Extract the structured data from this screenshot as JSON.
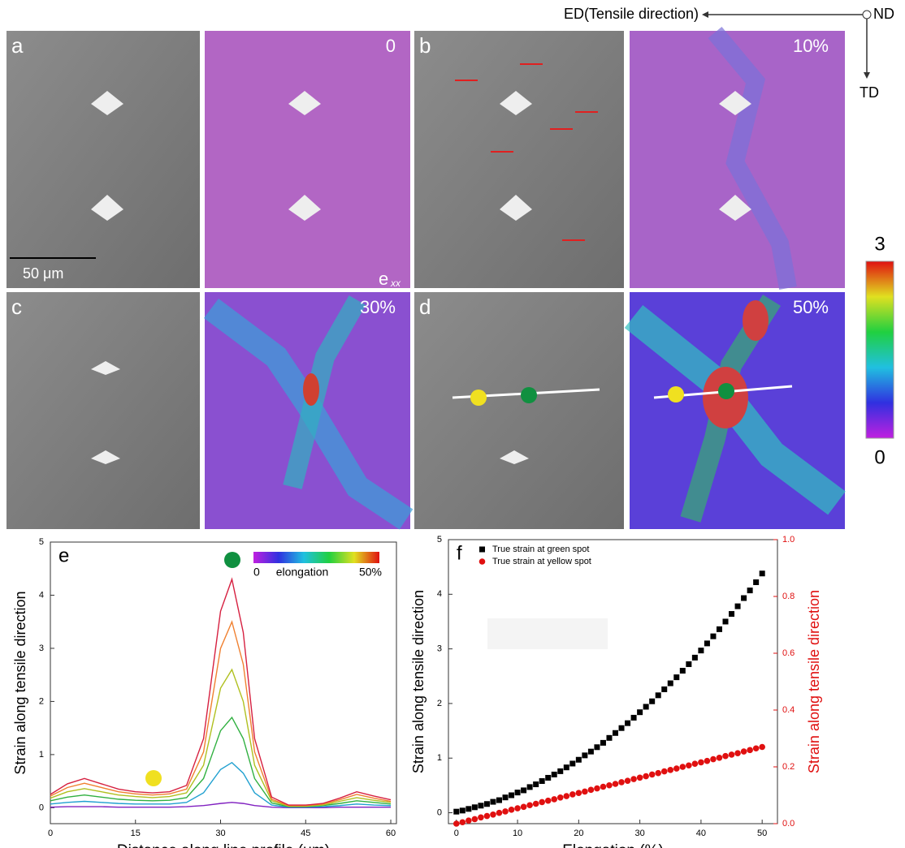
{
  "figure": {
    "header": {
      "ed": "ED(Tensile direction)",
      "nd": "ND",
      "td": "TD"
    },
    "panels": [
      {
        "label": "a",
        "strain": "0"
      },
      {
        "label": "b",
        "strain": "10%"
      },
      {
        "label": "c",
        "strain": "30%"
      },
      {
        "label": "d",
        "strain": "50%"
      }
    ],
    "scale_bar": "50 μm",
    "map_symbol": {
      "main": "e",
      "sub": "xx"
    },
    "colorbar": {
      "max": "3",
      "min": "0"
    }
  },
  "chart_data": [
    {
      "type": "line",
      "panel": "e",
      "xlabel": "Distance along line profile (μm)",
      "ylabel": "Strain along tensile direction",
      "legend_labels": [
        "0",
        "elongation",
        "50%"
      ],
      "xlim": [
        0,
        61
      ],
      "ylim": [
        -0.3,
        5
      ],
      "xticks": [
        0,
        15,
        30,
        45,
        60
      ],
      "yticks": [
        0,
        1,
        2,
        3,
        4,
        5
      ],
      "x": [
        0,
        3,
        6,
        9,
        12,
        15,
        18,
        21,
        24,
        27,
        30,
        32,
        34,
        36,
        39,
        42,
        45,
        48,
        51,
        54,
        57,
        60
      ],
      "series": [
        {
          "color": "#8020c0",
          "values": [
            0.01,
            0.02,
            0.02,
            0.02,
            0.01,
            0.01,
            0.01,
            0.01,
            0.02,
            0.04,
            0.08,
            0.1,
            0.08,
            0.04,
            0.01,
            0,
            0,
            0,
            0.01,
            0.01,
            0.01,
            0.01
          ]
        },
        {
          "color": "#20a0d0",
          "values": [
            0.07,
            0.1,
            0.12,
            0.1,
            0.08,
            0.07,
            0.07,
            0.07,
            0.1,
            0.28,
            0.72,
            0.85,
            0.65,
            0.28,
            0.05,
            0.01,
            0.01,
            0.02,
            0.04,
            0.07,
            0.05,
            0.04
          ]
        },
        {
          "color": "#30b040",
          "values": [
            0.13,
            0.2,
            0.24,
            0.2,
            0.16,
            0.14,
            0.13,
            0.14,
            0.19,
            0.55,
            1.45,
            1.7,
            1.3,
            0.55,
            0.09,
            0.02,
            0.02,
            0.04,
            0.08,
            0.13,
            0.1,
            0.07
          ]
        },
        {
          "color": "#b0c020",
          "values": [
            0.18,
            0.3,
            0.36,
            0.3,
            0.24,
            0.21,
            0.19,
            0.21,
            0.28,
            0.8,
            2.25,
            2.6,
            2.0,
            0.8,
            0.13,
            0.03,
            0.03,
            0.05,
            0.12,
            0.19,
            0.14,
            0.1
          ]
        },
        {
          "color": "#f08030",
          "values": [
            0.22,
            0.38,
            0.46,
            0.38,
            0.3,
            0.26,
            0.24,
            0.26,
            0.35,
            1.05,
            3.0,
            3.5,
            2.7,
            1.05,
            0.16,
            0.04,
            0.04,
            0.07,
            0.15,
            0.25,
            0.18,
            0.12
          ]
        },
        {
          "color": "#d62040",
          "values": [
            0.25,
            0.45,
            0.55,
            0.45,
            0.35,
            0.3,
            0.28,
            0.3,
            0.42,
            1.3,
            3.7,
            4.3,
            3.3,
            1.3,
            0.2,
            0.05,
            0.05,
            0.08,
            0.18,
            0.3,
            0.22,
            0.15
          ]
        }
      ]
    },
    {
      "type": "scatter",
      "panel": "f",
      "xlabel": "Elongation (%)",
      "ylabel": "Strain along tensile direction",
      "y2label": "Strain along tensile direction",
      "xlim": [
        -1.3,
        52.5
      ],
      "ylim": [
        -0.2,
        5
      ],
      "y2lim": [
        0,
        1
      ],
      "xticks": [
        0,
        10,
        20,
        30,
        40,
        50
      ],
      "yticks": [
        0,
        1,
        2,
        3,
        4,
        5
      ],
      "y2ticks": [
        {
          "value": 0,
          "label": "0.0"
        },
        0.2,
        0.4,
        0.6,
        0.8,
        {
          "value": 1,
          "label": "1.0"
        }
      ],
      "x": [
        0,
        1,
        2,
        3,
        4,
        5,
        6,
        7,
        8,
        9,
        10,
        11,
        12,
        13,
        14,
        15,
        16,
        17,
        18,
        19,
        20,
        21,
        22,
        23,
        24,
        25,
        26,
        27,
        28,
        29,
        30,
        31,
        32,
        33,
        34,
        35,
        36,
        37,
        38,
        39,
        40,
        41,
        42,
        43,
        44,
        45,
        46,
        47,
        48,
        49,
        50
      ],
      "series": [
        {
          "name": "True strain at green spot",
          "color": "#000000",
          "marker": "square",
          "values": [
            0.02,
            0.04,
            0.07,
            0.1,
            0.13,
            0.16,
            0.2,
            0.23,
            0.28,
            0.32,
            0.37,
            0.41,
            0.47,
            0.52,
            0.58,
            0.64,
            0.7,
            0.76,
            0.83,
            0.9,
            0.97,
            1.05,
            1.12,
            1.2,
            1.28,
            1.37,
            1.46,
            1.55,
            1.64,
            1.74,
            1.84,
            1.94,
            2.04,
            2.15,
            2.26,
            2.37,
            2.48,
            2.6,
            2.72,
            2.84,
            2.97,
            3.1,
            3.23,
            3.36,
            3.5,
            3.64,
            3.78,
            3.93,
            4.07,
            4.22,
            4.38
          ]
        },
        {
          "name": "True strain at yellow spot",
          "color": "#e01010",
          "marker": "circle",
          "axis": "y2",
          "values": [
            0.0,
            0.005,
            0.011,
            0.016,
            0.022,
            0.027,
            0.032,
            0.038,
            0.043,
            0.049,
            0.054,
            0.059,
            0.065,
            0.07,
            0.076,
            0.081,
            0.086,
            0.092,
            0.097,
            0.103,
            0.108,
            0.113,
            0.119,
            0.124,
            0.13,
            0.135,
            0.14,
            0.146,
            0.151,
            0.157,
            0.162,
            0.167,
            0.173,
            0.178,
            0.184,
            0.189,
            0.194,
            0.2,
            0.205,
            0.211,
            0.216,
            0.221,
            0.227,
            0.232,
            0.238,
            0.243,
            0.248,
            0.254,
            0.259,
            0.265,
            0.27
          ]
        }
      ]
    }
  ]
}
